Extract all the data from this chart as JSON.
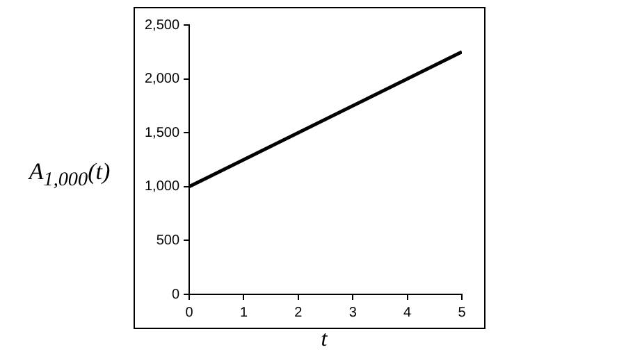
{
  "chart_data": {
    "type": "line",
    "xlabel": "t",
    "ylabel": "A$_{1,000}$(t)",
    "x": [
      0,
      5
    ],
    "series": [
      {
        "color": "#000000",
        "values": [
          1000,
          2250
        ]
      }
    ],
    "xlim": [
      0,
      5
    ],
    "xticks": [
      0,
      1,
      2,
      3,
      4,
      5
    ],
    "ylim": [
      0,
      2500
    ],
    "yticks": [
      0,
      {
        "value": 500,
        "label": "500"
      },
      {
        "value": 1000,
        "label": "1,000"
      },
      {
        "value": 1500,
        "label": "1,500"
      },
      {
        "value": 2000,
        "label": "2,000"
      },
      {
        "value": 2500,
        "label": "2,500"
      }
    ],
    "marker": "none",
    "line_style": "solid",
    "legend": false,
    "grid": false
  }
}
